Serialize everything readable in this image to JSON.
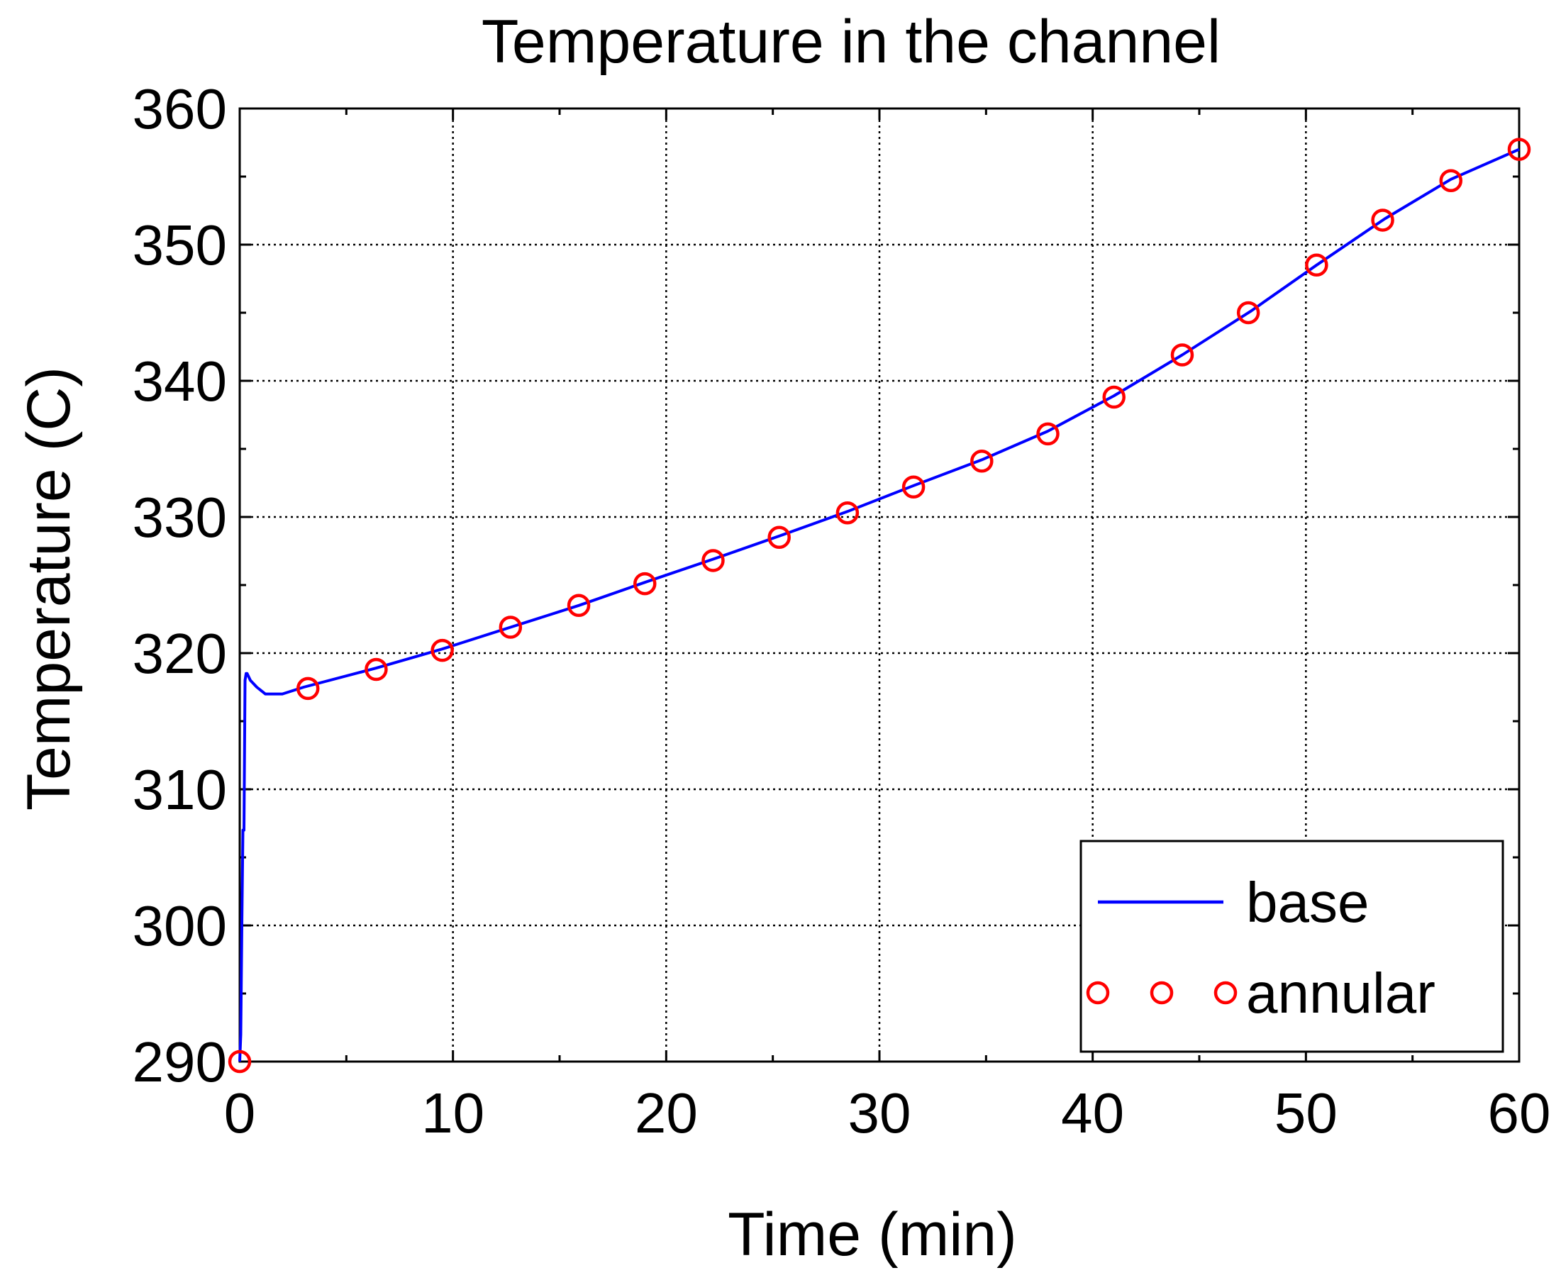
{
  "chart_data": {
    "type": "line",
    "title": "Temperature in the channel",
    "xlabel": "Time (min)",
    "ylabel": "Temperature (C)",
    "xlim": [
      0,
      60
    ],
    "ylim": [
      290,
      360
    ],
    "x_ticks": [
      0,
      10,
      20,
      30,
      40,
      50,
      60
    ],
    "y_ticks": [
      290,
      300,
      310,
      320,
      330,
      340,
      350,
      360
    ],
    "x_tick_labels": [
      "0",
      "10",
      "20",
      "30",
      "40",
      "50",
      "60"
    ],
    "y_tick_labels": [
      "290",
      "300",
      "310",
      "320",
      "330",
      "340",
      "350",
      "360"
    ],
    "grid": true,
    "legend_position": "bottom-right",
    "series": [
      {
        "name": "base",
        "style": "line",
        "color": "#0000ff",
        "x": [
          0.0,
          0.05,
          0.1,
          0.15,
          0.2,
          0.25,
          0.3,
          0.35,
          0.5,
          0.8,
          1.2,
          2.0,
          3.0,
          6.4,
          9.5,
          12.7,
          15.9,
          19.0,
          22.2,
          25.3,
          28.5,
          31.6,
          34.8,
          37.9,
          41.0,
          44.2,
          47.4,
          50.5,
          53.7,
          56.8,
          60.0
        ],
        "y": [
          290.0,
          292.0,
          300.0,
          307.0,
          307.0,
          318.0,
          318.5,
          318.5,
          318.0,
          317.5,
          317.0,
          317.0,
          317.5,
          318.9,
          320.3,
          321.9,
          323.5,
          325.2,
          326.9,
          328.6,
          330.4,
          332.3,
          334.2,
          336.3,
          338.9,
          341.9,
          345.1,
          348.5,
          351.9,
          354.8,
          357.0
        ]
      },
      {
        "name": "annular",
        "style": "markers",
        "marker": "circle-open",
        "color": "#ff0000",
        "x": [
          0.0,
          3.2,
          6.4,
          9.5,
          12.7,
          15.9,
          19.0,
          22.2,
          25.3,
          28.5,
          31.6,
          34.8,
          37.9,
          41.0,
          44.2,
          47.3,
          50.5,
          53.6,
          56.8,
          60.0
        ],
        "y": [
          290.0,
          317.4,
          318.8,
          320.2,
          321.9,
          323.5,
          325.1,
          326.8,
          328.5,
          330.3,
          332.2,
          334.1,
          336.1,
          338.8,
          341.9,
          345.0,
          348.5,
          351.8,
          354.7,
          357.0
        ]
      }
    ]
  }
}
